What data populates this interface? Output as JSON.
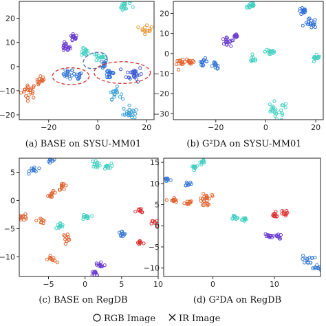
{
  "chart_data": [
    {
      "type": "scatter",
      "caption": "(a) BASE on SYSU-MM01",
      "xlim": [
        -32,
        23
      ],
      "ylim": [
        -22,
        27
      ],
      "xticks": [
        -20,
        0,
        20
      ],
      "yticks": [
        -20,
        -10,
        0,
        10,
        20
      ],
      "clusters": [
        {
          "x": -28,
          "y": -10,
          "color": "#e0622d",
          "modality": "rgb",
          "n": 22,
          "spread": 1.6
        },
        {
          "x": -23,
          "y": -6,
          "color": "#e0622d",
          "modality": "rgb",
          "n": 14,
          "spread": 1.0
        },
        {
          "x": -12,
          "y": -3,
          "color": "#3a7bd5",
          "modality": "rgb",
          "n": 16,
          "spread": 1.0
        },
        {
          "x": -8,
          "y": -4,
          "color": "#2e6fd8",
          "modality": "rgb",
          "n": 10,
          "spread": 0.8
        },
        {
          "x": -13,
          "y": 8,
          "color": "#6a3bd0",
          "modality": "rgb",
          "n": 18,
          "spread": 0.9
        },
        {
          "x": -10,
          "y": 12,
          "color": "#6a3bd0",
          "modality": "rgb",
          "n": 14,
          "spread": 0.9
        },
        {
          "x": -5,
          "y": 6,
          "color": "#40d0c0",
          "modality": "rgb",
          "n": 14,
          "spread": 0.8
        },
        {
          "x": 1,
          "y": 4,
          "color": "#40d0c0",
          "modality": "rgb",
          "n": 16,
          "spread": 1.0
        },
        {
          "x": 2,
          "y": 1,
          "color": "#3a7bd5",
          "modality": "rgb",
          "n": 14,
          "spread": 0.9
        },
        {
          "x": 5,
          "y": -3,
          "color": "#2e6fd8",
          "modality": "rgb",
          "n": 18,
          "spread": 1.2
        },
        {
          "x": 15,
          "y": -3,
          "color": "#3a58d0",
          "modality": "rgb",
          "n": 26,
          "spread": 1.6
        },
        {
          "x": 7,
          "y": -11,
          "color": "#3aa0d5",
          "modality": "rgb",
          "n": 18,
          "spread": 1.2
        },
        {
          "x": 13,
          "y": -19,
          "color": "#3aa0d5",
          "modality": "rgb",
          "n": 22,
          "spread": 1.3
        },
        {
          "x": 11,
          "y": 25,
          "color": "#40d0c0",
          "modality": "rgb",
          "n": 18,
          "spread": 1.2
        },
        {
          "x": 20,
          "y": 16,
          "color": "#e89a3a",
          "modality": "rgb",
          "n": 14,
          "spread": 1.2
        }
      ]
    },
    {
      "type": "scatter",
      "caption": "(b) G²DA on SYSU-MM01",
      "xlim": [
        -37,
        23
      ],
      "ylim": [
        -33,
        26
      ],
      "xticks": [
        -20,
        0,
        20
      ],
      "yticks": [
        -30,
        -20,
        -10,
        0,
        10,
        20
      ],
      "clusters": [
        {
          "x": -34,
          "y": -5,
          "color": "#e0622d",
          "modality": "rgb",
          "n": 14,
          "spread": 0.9
        },
        {
          "x": -30,
          "y": -4,
          "color": "#e0622d",
          "modality": "rgb",
          "n": 12,
          "spread": 0.9
        },
        {
          "x": -25,
          "y": -4,
          "color": "#2e6fd8",
          "modality": "rgb",
          "n": 12,
          "spread": 0.8
        },
        {
          "x": -20,
          "y": -6,
          "color": "#3a7bd5",
          "modality": "rgb",
          "n": 12,
          "spread": 0.9
        },
        {
          "x": -16,
          "y": 6,
          "color": "#6a3bd0",
          "modality": "rgb",
          "n": 14,
          "spread": 0.9
        },
        {
          "x": -12,
          "y": 8,
          "color": "#6a3bd0",
          "modality": "rgb",
          "n": 12,
          "spread": 0.8
        },
        {
          "x": -6,
          "y": 24,
          "color": "#40d0c0",
          "modality": "rgb",
          "n": 16,
          "spread": 1.0
        },
        {
          "x": 2,
          "y": 1,
          "color": "#40d0c0",
          "modality": "rgb",
          "n": 16,
          "spread": 1.1
        },
        {
          "x": -5,
          "y": -3,
          "color": "#40d0c0",
          "modality": "rgb",
          "n": 10,
          "spread": 0.8
        },
        {
          "x": 4,
          "y": -29,
          "color": "#40d0c0",
          "modality": "rgb",
          "n": 24,
          "spread": 2.5
        },
        {
          "x": 15,
          "y": 21,
          "color": "#2e6fd8",
          "modality": "rgb",
          "n": 14,
          "spread": 0.9
        },
        {
          "x": 18,
          "y": 15,
          "color": "#2e6fd8",
          "modality": "rgb",
          "n": 18,
          "spread": 1.2
        },
        {
          "x": 20,
          "y": -3,
          "color": "#40d0c0",
          "modality": "rgb",
          "n": 12,
          "spread": 1.0
        }
      ]
    },
    {
      "type": "scatter",
      "caption": "(c) BASE on RegDB",
      "xlim": [
        -9,
        10
      ],
      "ylim": [
        -13.5,
        7.5
      ],
      "xticks": [
        -5,
        0,
        5,
        10
      ],
      "yticks": [
        -10,
        -5,
        0,
        5
      ],
      "clusters": [
        {
          "x": -7,
          "y": 5.5,
          "color": "#3a7bd5",
          "modality": "rgb",
          "n": 12,
          "spread": 0.3
        },
        {
          "x": -4.5,
          "y": 7.2,
          "color": "#3a7bd5",
          "modality": "rgb",
          "n": 10,
          "spread": 0.3
        },
        {
          "x": -8.5,
          "y": -3,
          "color": "#e0622d",
          "modality": "rgb",
          "n": 12,
          "spread": 0.3
        },
        {
          "x": -6,
          "y": -3.5,
          "color": "#e0622d",
          "modality": "rgb",
          "n": 10,
          "spread": 0.3
        },
        {
          "x": -4.5,
          "y": 1,
          "color": "#e0622d",
          "modality": "rgb",
          "n": 10,
          "spread": 0.3
        },
        {
          "x": -3,
          "y": 2.5,
          "color": "#e0622d",
          "modality": "rgb",
          "n": 12,
          "spread": 0.3
        },
        {
          "x": -3.5,
          "y": -4.5,
          "color": "#40d0c0",
          "modality": "rgb",
          "n": 12,
          "spread": 0.3
        },
        {
          "x": -2.5,
          "y": -6.5,
          "color": "#e0622d",
          "modality": "rgb",
          "n": 10,
          "spread": 0.3
        },
        {
          "x": -4.5,
          "y": -10.5,
          "color": "#e0622d",
          "modality": "rgb",
          "n": 10,
          "spread": 0.3
        },
        {
          "x": 0,
          "y": -3,
          "color": "#40d0c0",
          "modality": "rgb",
          "n": 12,
          "spread": 0.3
        },
        {
          "x": 1.5,
          "y": 6.5,
          "color": "#40d0c0",
          "modality": "rgb",
          "n": 12,
          "spread": 0.3
        },
        {
          "x": 3,
          "y": 6,
          "color": "#40d0c0",
          "modality": "rgb",
          "n": 12,
          "spread": 0.3
        },
        {
          "x": 5,
          "y": -6,
          "color": "#3a7bd5",
          "modality": "rgb",
          "n": 12,
          "spread": 0.3
        },
        {
          "x": 7.5,
          "y": -2,
          "color": "#e03030",
          "modality": "rgb",
          "n": 10,
          "spread": 0.3
        },
        {
          "x": 9.7,
          "y": -4,
          "color": "#e03030",
          "modality": "rgb",
          "n": 10,
          "spread": 0.3
        },
        {
          "x": 7.5,
          "y": -7.5,
          "color": "#e03030",
          "modality": "rgb",
          "n": 10,
          "spread": 0.3
        },
        {
          "x": 2,
          "y": -11.5,
          "color": "#6a3bd0",
          "modality": "rgb",
          "n": 12,
          "spread": 0.4
        },
        {
          "x": 1.5,
          "y": -13,
          "color": "#6a3bd0",
          "modality": "rgb",
          "n": 10,
          "spread": 0.3
        }
      ]
    },
    {
      "type": "scatter",
      "caption": "(d) G²DA on RegDB",
      "xlim": [
        -8,
        17.5
      ],
      "ylim": [
        -12,
        16
      ],
      "xticks": [
        0,
        10
      ],
      "yticks": [
        -10,
        -5,
        0,
        5,
        10,
        15
      ],
      "clusters": [
        {
          "x": -7.5,
          "y": 11,
          "color": "#3a7bd5",
          "modality": "rgb",
          "n": 10,
          "spread": 0.3
        },
        {
          "x": -4,
          "y": 10,
          "color": "#3a7bd5",
          "modality": "rgb",
          "n": 10,
          "spread": 0.3
        },
        {
          "x": -3,
          "y": 14,
          "color": "#40d0c0",
          "modality": "rgb",
          "n": 10,
          "spread": 0.3
        },
        {
          "x": -1.5,
          "y": 15,
          "color": "#40d0c0",
          "modality": "rgb",
          "n": 10,
          "spread": 0.3
        },
        {
          "x": -6.5,
          "y": 6,
          "color": "#e0622d",
          "modality": "rgb",
          "n": 12,
          "spread": 0.35
        },
        {
          "x": -4,
          "y": 5.5,
          "color": "#e0622d",
          "modality": "rgb",
          "n": 10,
          "spread": 0.3
        },
        {
          "x": -1,
          "y": 7,
          "color": "#e0622d",
          "modality": "rgb",
          "n": 14,
          "spread": 0.4
        },
        {
          "x": -1,
          "y": 5.5,
          "color": "#e0622d",
          "modality": "rgb",
          "n": 10,
          "spread": 0.35
        },
        {
          "x": 3.5,
          "y": 2,
          "color": "#40d0c0",
          "modality": "rgb",
          "n": 10,
          "spread": 0.3
        },
        {
          "x": 5,
          "y": 1.5,
          "color": "#40d0c0",
          "modality": "rgb",
          "n": 10,
          "spread": 0.3
        },
        {
          "x": 10,
          "y": 2.5,
          "color": "#e03030",
          "modality": "rgb",
          "n": 12,
          "spread": 0.35
        },
        {
          "x": 11.5,
          "y": 3,
          "color": "#e03030",
          "modality": "rgb",
          "n": 10,
          "spread": 0.3
        },
        {
          "x": 9,
          "y": -2.5,
          "color": "#6a3bd0",
          "modality": "rgb",
          "n": 12,
          "spread": 0.35
        },
        {
          "x": 10.5,
          "y": -2.5,
          "color": "#6a3bd0",
          "modality": "rgb",
          "n": 10,
          "spread": 0.3
        },
        {
          "x": 15.5,
          "y": -8,
          "color": "#3a7bd5",
          "modality": "rgb",
          "n": 14,
          "spread": 0.5
        },
        {
          "x": 17,
          "y": -10,
          "color": "#3a7bd5",
          "modality": "rgb",
          "n": 10,
          "spread": 0.4
        }
      ]
    }
  ],
  "legend": {
    "rgb_label": "RGB Image",
    "ir_label": "IR Image"
  }
}
